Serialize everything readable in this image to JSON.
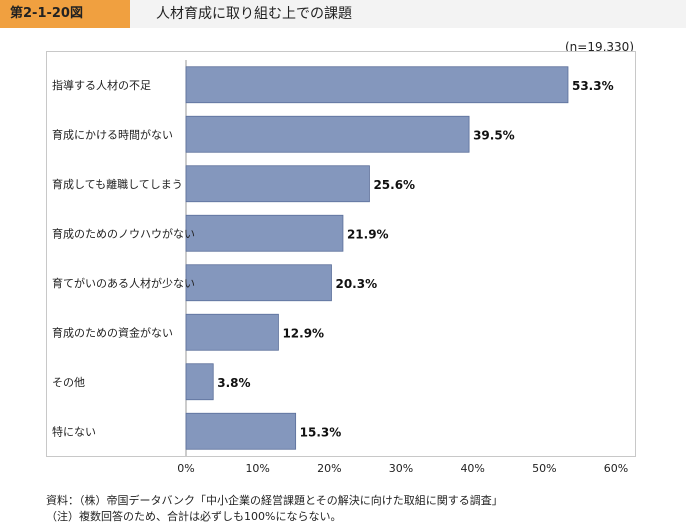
{
  "header": {
    "figure_label": "第2-1-20図",
    "title": "人材育成に取り組む上での課題"
  },
  "colors": {
    "bar": "#8497bd",
    "bar_stroke": "#5a6e99",
    "header_accent": "#f0a040"
  },
  "chart_data": {
    "type": "bar",
    "orientation": "horizontal",
    "title": "人材育成に取り組む上での課題",
    "sample_size": "(n=19,330)",
    "categories": [
      "指導する人材の不足",
      "育成にかける時間がない",
      "育成しても離職してしまう",
      "育成のためのノウハウがない",
      "育てがいのある人材が少ない",
      "育成のための資金がない",
      "その他",
      "特にない"
    ],
    "values": [
      53.3,
      39.5,
      25.6,
      21.9,
      20.3,
      12.9,
      3.8,
      15.3
    ],
    "value_labels": [
      "53.3%",
      "39.5%",
      "25.6%",
      "21.9%",
      "20.3%",
      "12.9%",
      "3.8%",
      "15.3%"
    ],
    "xlim": [
      0,
      60
    ],
    "xticks": [
      0,
      10,
      20,
      30,
      40,
      50,
      60
    ],
    "xtick_labels": [
      "0%",
      "10%",
      "20%",
      "30%",
      "40%",
      "50%",
      "60%"
    ],
    "grid": false,
    "legend": "none"
  },
  "footnotes": {
    "source": "資料：（株）帝国データバンク「中小企業の経営課題とその解決に向けた取組に関する調査」",
    "note": "（注）複数回答のため、合計は必ずしも100%にならない。"
  }
}
